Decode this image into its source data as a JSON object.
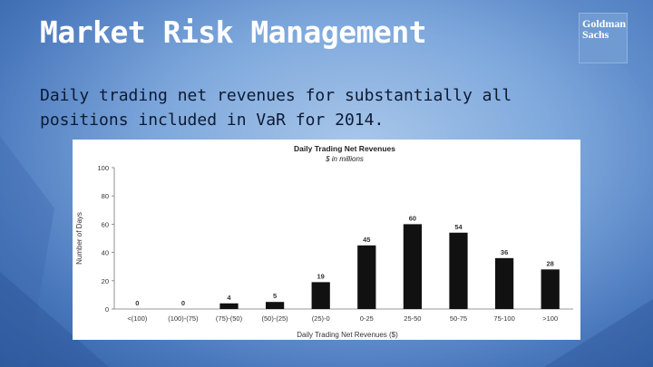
{
  "slide": {
    "title": "Market Risk Management",
    "subtitle": "Daily trading net revenues for substantially all positions included in VaR for 2014."
  },
  "logo": {
    "line1": "Goldman",
    "line2": "Sachs",
    "color": "#6f9bd2"
  },
  "chart_data": {
    "type": "bar",
    "title": "Daily Trading Net Revenues",
    "subtitle": "$ in millions",
    "xlabel": "Daily Trading Net Revenues ($)",
    "ylabel": "Number of Days",
    "categories": [
      "<(100)",
      "(100)-(75)",
      "(75)-(50)",
      "(50)-(25)",
      "(25)-0",
      "0-25",
      "25-50",
      "50-75",
      "75-100",
      ">100"
    ],
    "values": [
      0,
      0,
      4,
      5,
      19,
      45,
      60,
      54,
      36,
      28
    ],
    "ylim": [
      0,
      100
    ],
    "yticks": [
      0,
      20,
      40,
      60,
      80,
      100
    ],
    "grid": false,
    "bar_color": "#111111"
  }
}
